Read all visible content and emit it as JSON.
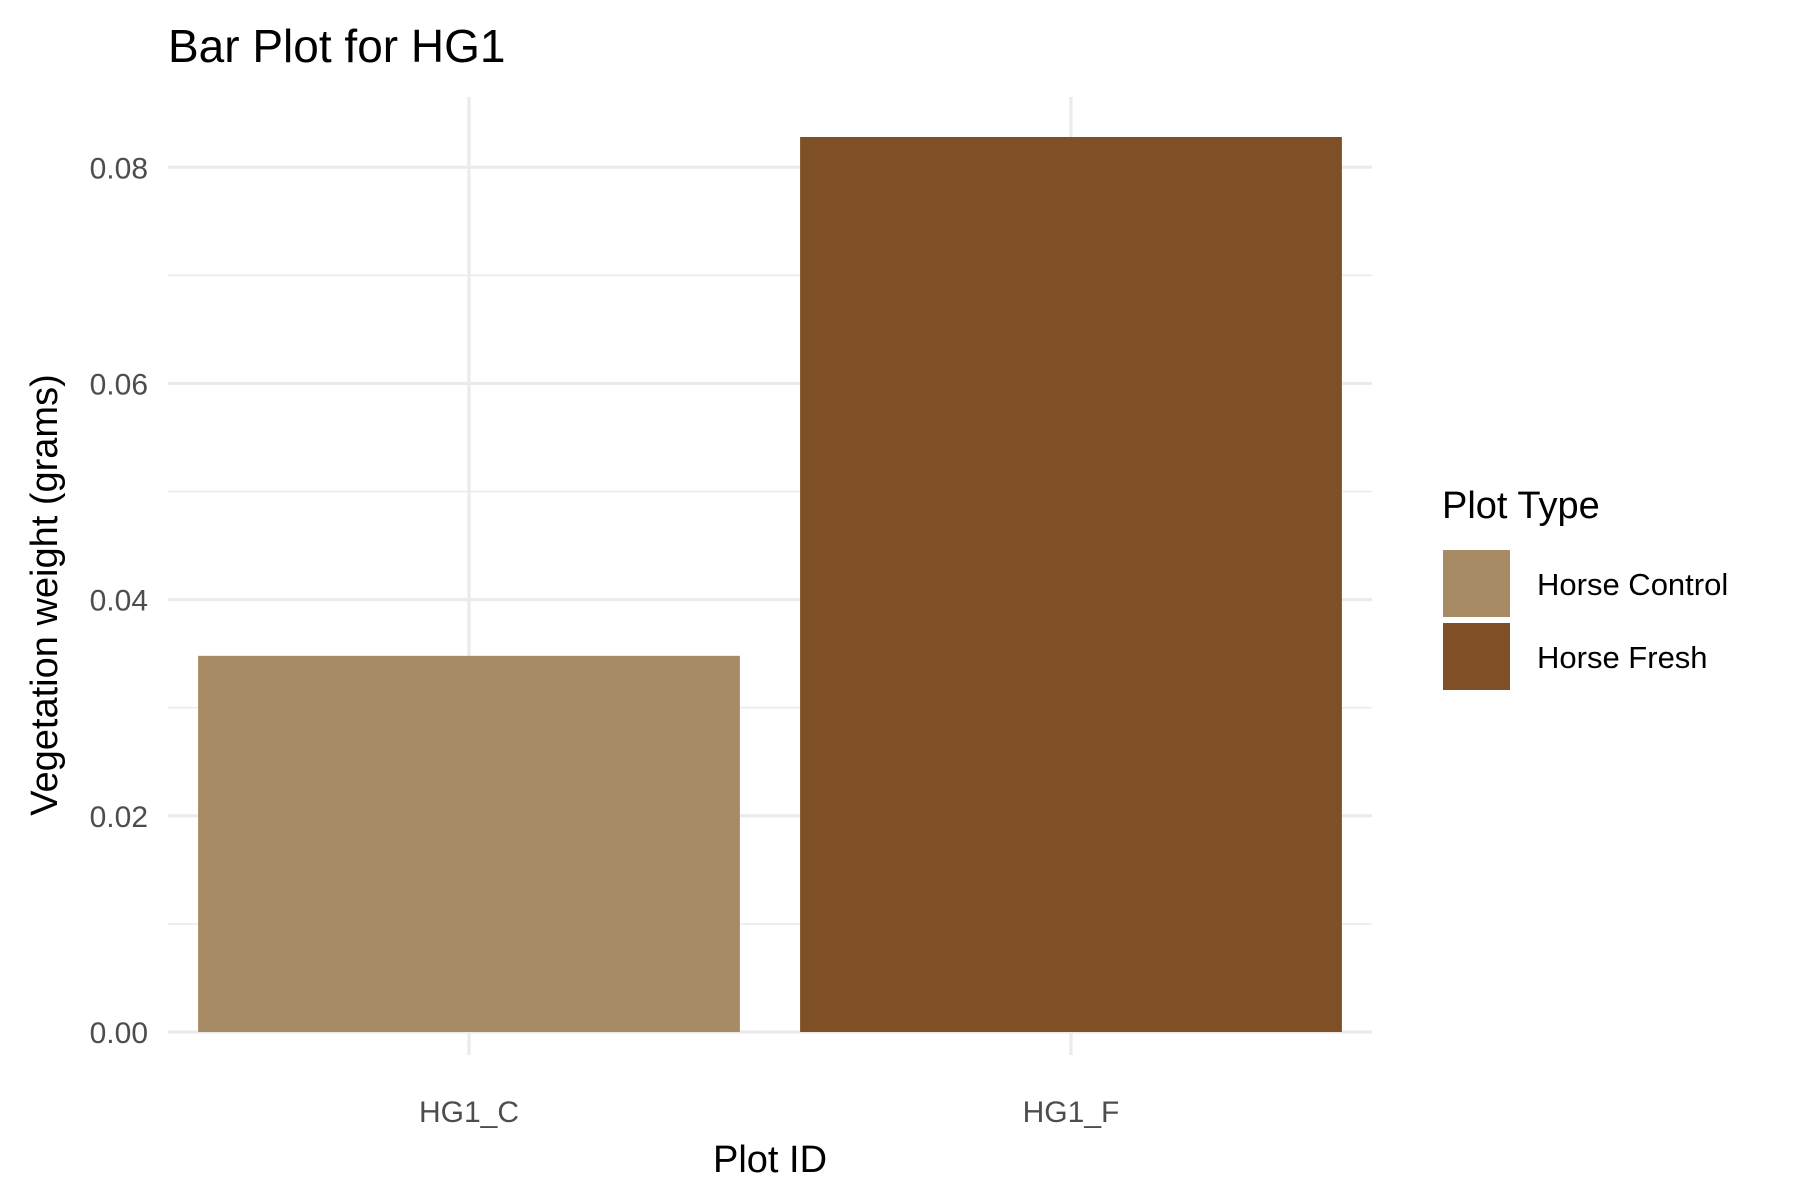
{
  "chart_data": {
    "type": "bar",
    "title": "Bar Plot for HG1",
    "xlabel": "Plot ID",
    "ylabel": "Vegetation weight (grams)",
    "categories": [
      "HG1_C",
      "HG1_F"
    ],
    "values": [
      0.0348,
      0.0828
    ],
    "fill_group": [
      "Horse Control",
      "Horse Fresh"
    ],
    "ylim": [
      0,
      0.0865
    ],
    "yticks": [
      0.0,
      0.02,
      0.04,
      0.06,
      0.08
    ],
    "ytick_labels": [
      "0.00",
      "0.02",
      "0.04",
      "0.06",
      "0.08"
    ],
    "grid": true,
    "legend": {
      "title": "Plot Type",
      "placement": "right",
      "entries": [
        {
          "label": "Horse Control",
          "color": "#A68B64"
        },
        {
          "label": "Horse Fresh",
          "color": "#7F5025"
        }
      ]
    },
    "colors": {
      "Horse Control": "#A68B64",
      "Horse Fresh": "#7F5025",
      "grid": "#EBEBEB"
    }
  }
}
